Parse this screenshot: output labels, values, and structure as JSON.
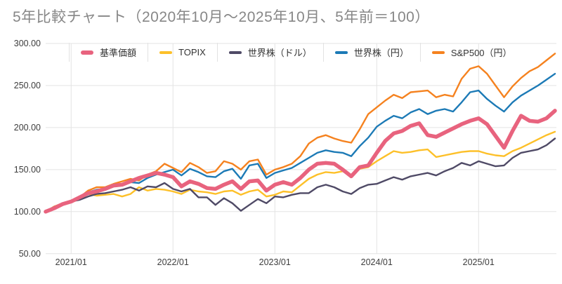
{
  "title": "5年比較チャート（2020年10月～2025年10月、5年前＝100）",
  "chart_data": {
    "type": "line",
    "title": "5年比較チャート（2020年10月～2025年10月、5年前＝100）",
    "note_base": "5年前＝100",
    "ylim": [
      50,
      300
    ],
    "grid": "on",
    "legend_position": "top",
    "y_ticks": [
      {
        "label": "300.00",
        "value": 300
      },
      {
        "label": "250.00",
        "value": 250
      },
      {
        "label": "200.00",
        "value": 200
      },
      {
        "label": "150.00",
        "value": 150
      },
      {
        "label": "100.00",
        "value": 100
      },
      {
        "label": "50.00",
        "value": 50
      }
    ],
    "x_tick_labels": [
      {
        "label": "2021/01",
        "index": 3
      },
      {
        "label": "2022/01",
        "index": 15
      },
      {
        "label": "2023/01",
        "index": 27
      },
      {
        "label": "2024/01",
        "index": 39
      },
      {
        "label": "2025/01",
        "index": 51
      }
    ],
    "x": [
      "2020/10",
      "2020/11",
      "2020/12",
      "2021/01",
      "2021/02",
      "2021/03",
      "2021/04",
      "2021/05",
      "2021/06",
      "2021/07",
      "2021/08",
      "2021/09",
      "2021/10",
      "2021/11",
      "2021/12",
      "2022/01",
      "2022/02",
      "2022/03",
      "2022/04",
      "2022/05",
      "2022/06",
      "2022/07",
      "2022/08",
      "2022/09",
      "2022/10",
      "2022/11",
      "2022/12",
      "2023/01",
      "2023/02",
      "2023/03",
      "2023/04",
      "2023/05",
      "2023/06",
      "2023/07",
      "2023/08",
      "2023/09",
      "2023/10",
      "2023/11",
      "2023/12",
      "2024/01",
      "2024/02",
      "2024/03",
      "2024/04",
      "2024/05",
      "2024/06",
      "2024/07",
      "2024/08",
      "2024/09",
      "2024/10",
      "2024/11",
      "2024/12",
      "2025/01",
      "2025/02",
      "2025/03",
      "2025/04",
      "2025/05",
      "2025/06",
      "2025/07",
      "2025/08",
      "2025/09",
      "2025/10"
    ],
    "series": [
      {
        "name": "基準価額",
        "color": "#e8637e",
        "emphasis": true,
        "values": [
          100,
          104,
          109,
          112,
          117,
          122,
          124,
          127,
          131,
          132,
          136,
          140,
          143,
          146,
          144,
          141,
          130,
          136,
          133,
          128,
          127,
          132,
          136,
          127,
          136,
          137,
          125,
          132,
          135,
          132,
          140,
          150,
          157,
          158,
          157,
          150,
          142,
          153,
          155,
          170,
          184,
          193,
          196,
          202,
          205,
          191,
          189,
          194,
          199,
          204,
          208,
          211,
          204,
          190,
          176,
          196,
          214,
          208,
          207,
          211,
          220
        ]
      },
      {
        "name": "TOPIX",
        "color": "#fdc029",
        "emphasis": false,
        "values": [
          100,
          105,
          108,
          111,
          115,
          121,
          119,
          120,
          121,
          118,
          121,
          129,
          125,
          127,
          126,
          124,
          121,
          126,
          124,
          123,
          121,
          124,
          125,
          120,
          124,
          126,
          118,
          120,
          124,
          123,
          131,
          139,
          144,
          147,
          146,
          148,
          142,
          151,
          153,
          160,
          166,
          172,
          170,
          171,
          173,
          174,
          165,
          167,
          169,
          171,
          172,
          172,
          169,
          167,
          166,
          172,
          176,
          181,
          186,
          191,
          195
        ]
      },
      {
        "name": "世界株（ドル）",
        "color": "#4f4a66",
        "emphasis": false,
        "values": [
          100,
          105,
          109,
          112,
          114,
          118,
          121,
          122,
          124,
          126,
          129,
          125,
          130,
          129,
          134,
          127,
          124,
          127,
          117,
          117,
          108,
          116,
          110,
          101,
          108,
          115,
          110,
          118,
          117,
          120,
          122,
          122,
          129,
          132,
          129,
          124,
          121,
          128,
          132,
          133,
          137,
          141,
          138,
          142,
          144,
          146,
          143,
          148,
          152,
          158,
          155,
          160,
          157,
          154,
          155,
          164,
          170,
          172,
          174,
          179,
          187
        ]
      },
      {
        "name": "世界株（円）",
        "color": "#1c7ab6",
        "emphasis": false,
        "values": [
          100,
          106,
          109,
          113,
          117,
          123,
          126,
          127,
          130,
          132,
          135,
          134,
          140,
          144,
          147,
          150,
          143,
          151,
          147,
          142,
          141,
          148,
          151,
          139,
          155,
          157,
          140,
          146,
          149,
          152,
          158,
          164,
          170,
          173,
          171,
          170,
          166,
          178,
          188,
          201,
          208,
          214,
          211,
          218,
          222,
          216,
          220,
          222,
          219,
          230,
          242,
          244,
          234,
          226,
          219,
          230,
          238,
          244,
          250,
          257,
          264
        ]
      },
      {
        "name": "S&P500（円）",
        "color": "#f5821f",
        "emphasis": false,
        "values": [
          100,
          106,
          110,
          112,
          117,
          125,
          129,
          129,
          133,
          136,
          139,
          137,
          144,
          148,
          157,
          152,
          147,
          158,
          153,
          146,
          148,
          160,
          157,
          150,
          160,
          162,
          144,
          150,
          153,
          157,
          166,
          181,
          188,
          191,
          187,
          184,
          182,
          198,
          216,
          224,
          232,
          239,
          235,
          242,
          243,
          244,
          236,
          239,
          237,
          258,
          270,
          273,
          264,
          250,
          236,
          249,
          259,
          267,
          272,
          280,
          288
        ]
      }
    ]
  },
  "style": {
    "grid_color": "#e3e3e3",
    "axis_label_color": "#3d3d3d",
    "title_color": "#878787"
  }
}
